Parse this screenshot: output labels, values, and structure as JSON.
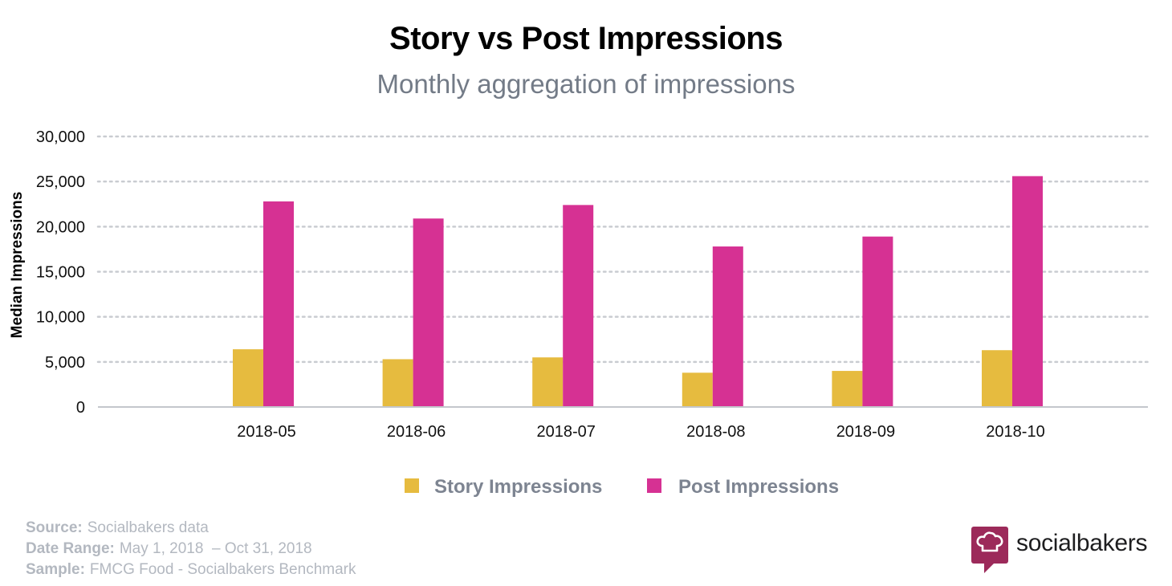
{
  "chart_data": {
    "type": "bar",
    "title": "Story vs Post Impressions",
    "subtitle": "Monthly aggregation of impressions",
    "ylabel": "Median Impressions",
    "xlabel": "",
    "ylim": [
      0,
      30000
    ],
    "yticks": [
      0,
      5000,
      10000,
      15000,
      20000,
      25000,
      30000
    ],
    "ytick_labels": [
      "0",
      "5,000",
      "10,000",
      "15,000",
      "20,000",
      "25,000",
      "30,000"
    ],
    "categories": [
      "2018-05",
      "2018-06",
      "2018-07",
      "2018-08",
      "2018-09",
      "2018-10"
    ],
    "series": [
      {
        "name": "Story Impressions",
        "color": "#e6bb3f",
        "values": [
          6400,
          5300,
          5500,
          3800,
          4000,
          6300
        ]
      },
      {
        "name": "Post Impressions",
        "color": "#d63193",
        "values": [
          22800,
          20900,
          22400,
          17800,
          18900,
          25600
        ]
      }
    ],
    "grid": "horizontal dotted",
    "legend_position": "bottom-center"
  },
  "footer": {
    "source_key": "Source:",
    "source_val": "Socialbakers data",
    "range_key": "Date Range:",
    "range_val": "May 1, 2018  – Oct 31, 2018",
    "sample_key": "Sample:",
    "sample_val": "FMCG Food - Socialbakers Benchmark"
  },
  "brand": {
    "name": "socialbakers",
    "icon": "chef-hat-icon",
    "color": "#9c2a5a"
  }
}
